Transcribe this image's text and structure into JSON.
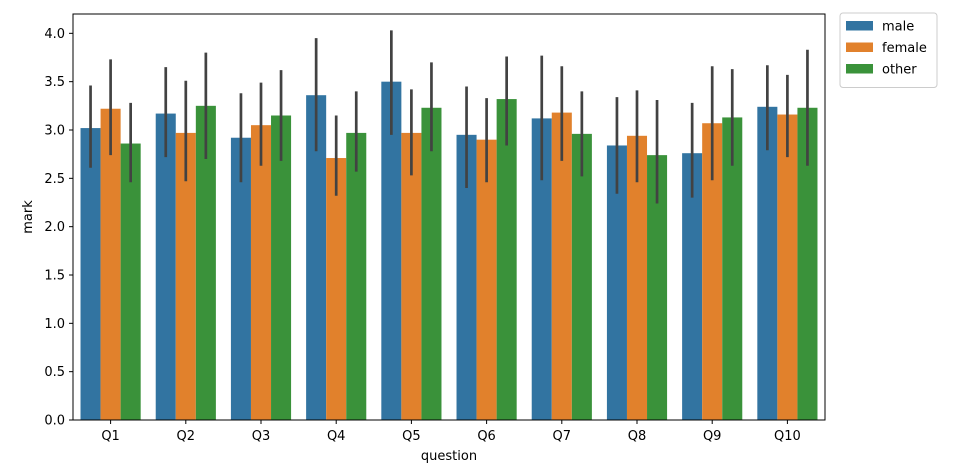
{
  "chart_data": {
    "type": "bar",
    "xlabel": "question",
    "ylabel": "mark",
    "ylim": [
      0,
      4.2
    ],
    "yticks": [
      "0.0",
      "0.5",
      "1.0",
      "1.5",
      "2.0",
      "2.5",
      "3.0",
      "3.5",
      "4.0"
    ],
    "categories": [
      "Q1",
      "Q2",
      "Q3",
      "Q4",
      "Q5",
      "Q6",
      "Q7",
      "Q8",
      "Q9",
      "Q10"
    ],
    "legend_placement": "outside-top-right",
    "grid": false,
    "series": [
      {
        "name": "male",
        "color": "#3274a1",
        "values": [
          3.02,
          3.17,
          2.92,
          3.36,
          3.5,
          2.95,
          3.12,
          2.84,
          2.76,
          3.24
        ],
        "err_low": [
          2.61,
          2.72,
          2.46,
          2.78,
          2.95,
          2.4,
          2.48,
          2.34,
          2.3,
          2.79
        ],
        "err_high": [
          3.46,
          3.65,
          3.38,
          3.95,
          4.03,
          3.45,
          3.77,
          3.34,
          3.28,
          3.67
        ]
      },
      {
        "name": "female",
        "color": "#e1812c",
        "values": [
          3.22,
          2.97,
          3.05,
          2.71,
          2.97,
          2.9,
          3.18,
          2.94,
          3.07,
          3.16
        ],
        "err_low": [
          2.74,
          2.47,
          2.63,
          2.32,
          2.53,
          2.46,
          2.68,
          2.46,
          2.48,
          2.72
        ],
        "err_high": [
          3.73,
          3.51,
          3.49,
          3.15,
          3.42,
          3.33,
          3.66,
          3.41,
          3.66,
          3.57
        ]
      },
      {
        "name": "other",
        "color": "#3a923a",
        "values": [
          2.86,
          3.25,
          3.15,
          2.97,
          3.23,
          3.32,
          2.96,
          2.74,
          3.13,
          3.23
        ],
        "err_low": [
          2.46,
          2.7,
          2.68,
          2.57,
          2.78,
          2.84,
          2.52,
          2.24,
          2.63,
          2.63
        ],
        "err_high": [
          3.28,
          3.8,
          3.62,
          3.4,
          3.7,
          3.76,
          3.4,
          3.31,
          3.63,
          3.83
        ]
      }
    ]
  }
}
